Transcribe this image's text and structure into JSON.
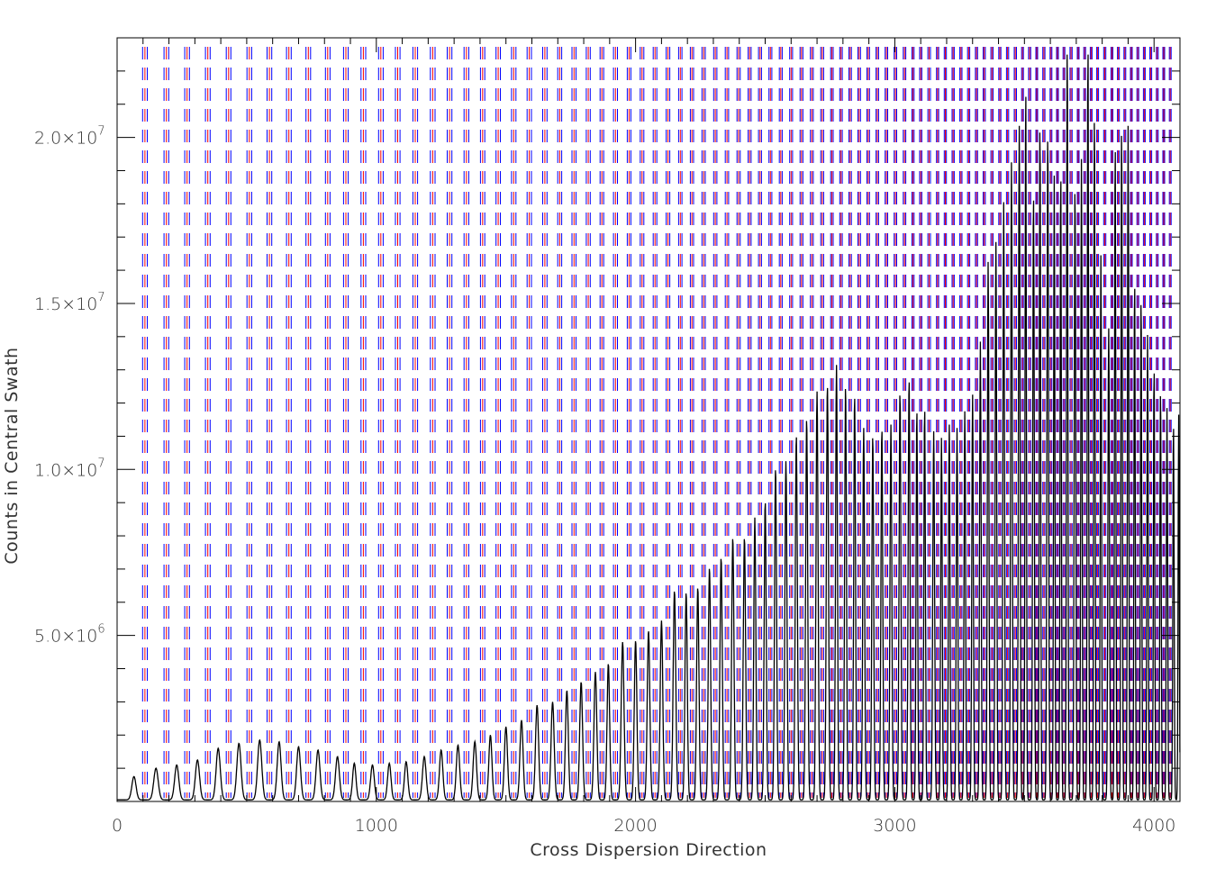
{
  "chart_data": {
    "type": "line",
    "title": "",
    "xlabel": "Cross Dispersion Direction",
    "ylabel": "Counts in Central Swath",
    "xlim": [
      0,
      4100
    ],
    "ylim": [
      0,
      23000000
    ],
    "x_ticks": [
      {
        "value": 0,
        "label": "0"
      },
      {
        "value": 1000,
        "label": "1000"
      },
      {
        "value": 2000,
        "label": "2000"
      },
      {
        "value": 3000,
        "label": "3000"
      },
      {
        "value": 4000,
        "label": "4000"
      }
    ],
    "y_ticks": [
      {
        "value": 5000000,
        "mantissa": "5.0×10",
        "exp": "6"
      },
      {
        "value": 10000000,
        "mantissa": "1.0×10",
        "exp": "7"
      },
      {
        "value": 15000000,
        "mantissa": "1.5×10",
        "exp": "7"
      },
      {
        "value": 20000000,
        "mantissa": "2.0×10",
        "exp": "7"
      }
    ],
    "grid": false,
    "legend": "none",
    "colors": {
      "profile": "#000000",
      "marker_a": "#0000ff",
      "marker_b": "#ff0000"
    },
    "series": [
      {
        "peaks": [
          [
            65,
            700000
          ],
          [
            150,
            950000
          ],
          [
            230,
            1050000
          ],
          [
            310,
            1200000
          ],
          [
            390,
            1550000
          ],
          [
            470,
            1700000
          ],
          [
            550,
            1800000
          ],
          [
            625,
            1750000
          ],
          [
            700,
            1600000
          ],
          [
            775,
            1500000
          ],
          [
            850,
            1300000
          ],
          [
            915,
            1100000
          ],
          [
            985,
            1050000
          ],
          [
            1050,
            1100000
          ],
          [
            1115,
            1150000
          ],
          [
            1185,
            1300000
          ],
          [
            1250,
            1500000
          ],
          [
            1315,
            1650000
          ],
          [
            1380,
            1750000
          ],
          [
            1440,
            1950000
          ],
          [
            1500,
            2200000
          ],
          [
            1560,
            2400000
          ],
          [
            1620,
            2850000
          ],
          [
            1680,
            2950000
          ],
          [
            1735,
            3300000
          ],
          [
            1790,
            3550000
          ],
          [
            1845,
            3850000
          ],
          [
            1895,
            4100000
          ],
          [
            1950,
            4750000
          ],
          [
            2000,
            4800000
          ],
          [
            2050,
            5100000
          ],
          [
            2100,
            5400000
          ],
          [
            2150,
            6300000
          ],
          [
            2195,
            6250000
          ],
          [
            2240,
            6400000
          ],
          [
            2285,
            7000000
          ],
          [
            2330,
            7300000
          ],
          [
            2375,
            7900000
          ],
          [
            2420,
            7900000
          ],
          [
            2460,
            8500000
          ],
          [
            2500,
            9000000
          ],
          [
            2540,
            10000000
          ],
          [
            2580,
            10200000
          ],
          [
            2620,
            11000000
          ],
          [
            2660,
            11500000
          ],
          [
            2700,
            12300000
          ],
          [
            2740,
            12500000
          ],
          [
            2775,
            13100000
          ],
          [
            2810,
            12500000
          ],
          [
            2845,
            12200000
          ],
          [
            2880,
            11200000
          ],
          [
            2915,
            11000000
          ],
          [
            2950,
            11200000
          ],
          [
            2985,
            11300000
          ],
          [
            3020,
            12300000
          ],
          [
            3055,
            12700000
          ],
          [
            3085,
            11800000
          ],
          [
            3115,
            11850000
          ],
          [
            3150,
            11100000
          ],
          [
            3180,
            10900000
          ],
          [
            3210,
            11300000
          ],
          [
            3240,
            11200000
          ],
          [
            3270,
            11700000
          ],
          [
            3300,
            12200000
          ],
          [
            3330,
            13800000
          ],
          [
            3360,
            16200000
          ],
          [
            3390,
            16800000
          ],
          [
            3420,
            18000000
          ],
          [
            3450,
            19200000
          ],
          [
            3480,
            20300000
          ],
          [
            3505,
            21600000
          ],
          [
            3535,
            18300000
          ],
          [
            3560,
            20500000
          ],
          [
            3590,
            20100000
          ],
          [
            3615,
            18800000
          ],
          [
            3640,
            19000000
          ],
          [
            3665,
            22900000
          ],
          [
            3695,
            18500000
          ],
          [
            3720,
            19300000
          ],
          [
            3745,
            22900000
          ],
          [
            3770,
            20800000
          ],
          [
            3795,
            16400000
          ],
          [
            3825,
            14200000
          ],
          [
            3850,
            19900000
          ],
          [
            3875,
            20400000
          ],
          [
            3900,
            20300000
          ],
          [
            3925,
            15700000
          ],
          [
            3950,
            15200000
          ],
          [
            3975,
            14000000
          ],
          [
            4000,
            13100000
          ],
          [
            4025,
            12400000
          ],
          [
            4050,
            11800000
          ],
          [
            4075,
            11400000
          ],
          [
            4095,
            11600000
          ]
        ]
      }
    ]
  }
}
